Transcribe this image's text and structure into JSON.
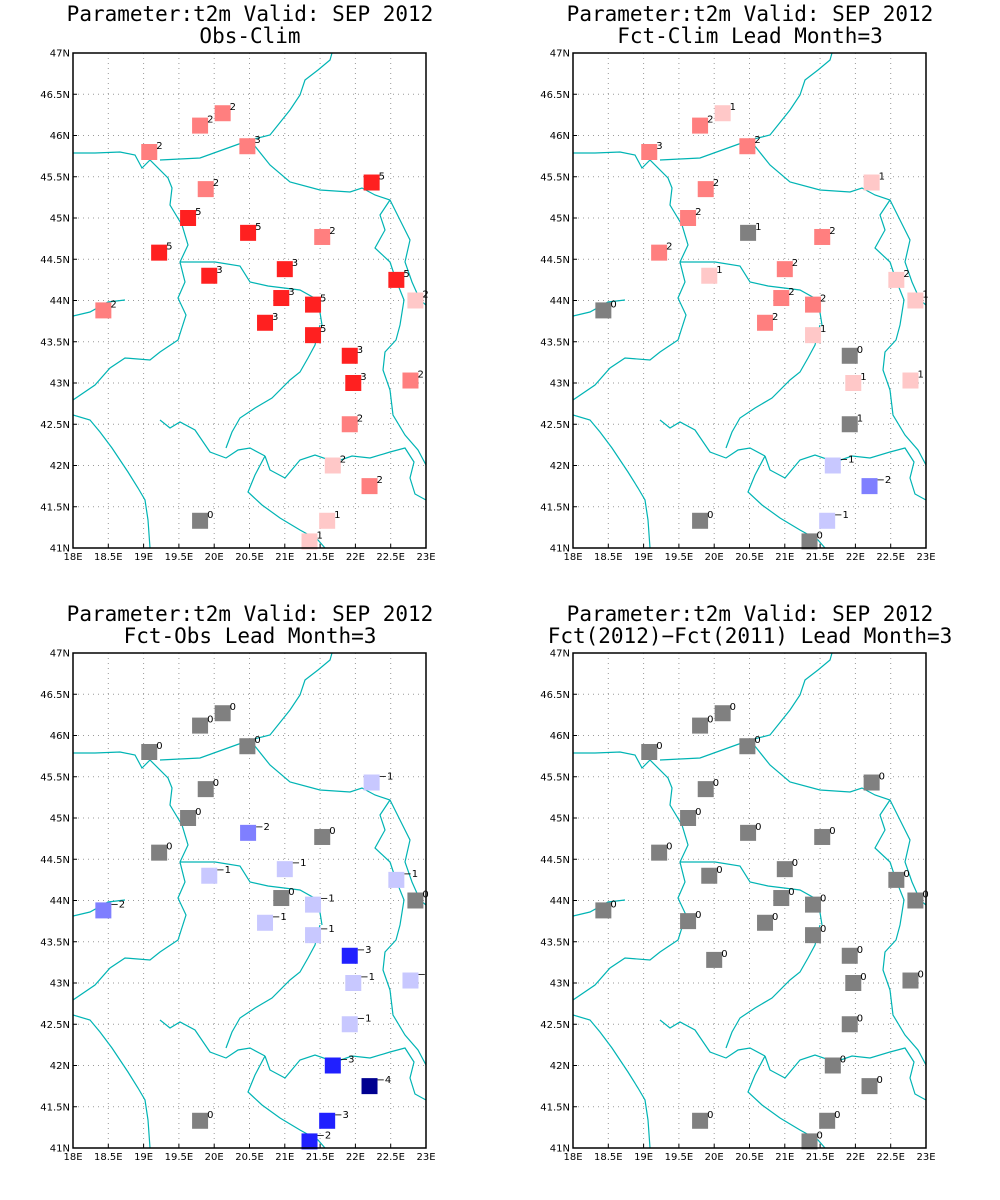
{
  "chart_data": [
    {
      "type": "scatter",
      "title": "Parameter:t2m Valid: SEP 2012",
      "subtitle": "Obs-Clim",
      "xlim": [
        18,
        23
      ],
      "ylim": [
        41,
        47
      ],
      "xticks": [
        "18E",
        "18.5E",
        "19E",
        "19.5E",
        "20E",
        "20.5E",
        "21E",
        "21.5E",
        "22E",
        "22.5E",
        "23E"
      ],
      "yticks": [
        "41N",
        "41.5N",
        "42N",
        "42.5N",
        "43N",
        "43.5N",
        "44N",
        "44.5N",
        "45N",
        "45.5N",
        "46N",
        "46.5N",
        "47N"
      ],
      "grid": true,
      "points": [
        {
          "x": 18.43,
          "y": 43.88,
          "v": "2",
          "c": "#ff7f7f"
        },
        {
          "x": 19.08,
          "y": 45.8,
          "v": "2",
          "c": "#ff7f7f"
        },
        {
          "x": 19.8,
          "y": 46.12,
          "v": "2",
          "c": "#ff7f7f"
        },
        {
          "x": 20.12,
          "y": 46.27,
          "v": "2",
          "c": "#ff7f7f"
        },
        {
          "x": 20.47,
          "y": 45.87,
          "v": "3",
          "c": "#ff7f7f"
        },
        {
          "x": 19.88,
          "y": 45.35,
          "v": "2",
          "c": "#ff7f7f"
        },
        {
          "x": 22.23,
          "y": 45.43,
          "v": "5",
          "c": "#ff2020"
        },
        {
          "x": 19.63,
          "y": 45.0,
          "v": "5",
          "c": "#ff2020"
        },
        {
          "x": 20.48,
          "y": 44.82,
          "v": "5",
          "c": "#ff2020"
        },
        {
          "x": 21.53,
          "y": 44.77,
          "v": "2",
          "c": "#ff7f7f"
        },
        {
          "x": 19.22,
          "y": 44.58,
          "v": "5",
          "c": "#ff2020"
        },
        {
          "x": 19.93,
          "y": 44.3,
          "v": "3",
          "c": "#ff2020"
        },
        {
          "x": 21.0,
          "y": 44.38,
          "v": "3",
          "c": "#ff2020"
        },
        {
          "x": 22.58,
          "y": 44.25,
          "v": "5",
          "c": "#ff2020"
        },
        {
          "x": 22.85,
          "y": 44.0,
          "v": "2",
          "c": "#ffc8c8"
        },
        {
          "x": 20.95,
          "y": 44.03,
          "v": "3",
          "c": "#ff2020"
        },
        {
          "x": 21.4,
          "y": 43.95,
          "v": "5",
          "c": "#ff2020"
        },
        {
          "x": 20.72,
          "y": 43.73,
          "v": "3",
          "c": "#ff2020"
        },
        {
          "x": 21.4,
          "y": 43.58,
          "v": "5",
          "c": "#ff2020"
        },
        {
          "x": 21.92,
          "y": 43.33,
          "v": "3",
          "c": "#ff2020"
        },
        {
          "x": 21.97,
          "y": 43.0,
          "v": "3",
          "c": "#ff2020"
        },
        {
          "x": 22.78,
          "y": 43.03,
          "v": "2",
          "c": "#ff7f7f"
        },
        {
          "x": 21.92,
          "y": 42.5,
          "v": "2",
          "c": "#ff7f7f"
        },
        {
          "x": 21.68,
          "y": 42.0,
          "v": "2",
          "c": "#ffc8c8"
        },
        {
          "x": 22.2,
          "y": 41.75,
          "v": "2",
          "c": "#ff7f7f"
        },
        {
          "x": 19.8,
          "y": 41.33,
          "v": "0",
          "c": "#808080"
        },
        {
          "x": 21.6,
          "y": 41.33,
          "v": "1",
          "c": "#ffc8c8"
        },
        {
          "x": 21.35,
          "y": 41.08,
          "v": "1",
          "c": "#ffc8c8"
        }
      ]
    },
    {
      "type": "scatter",
      "title": "Parameter:t2m Valid: SEP 2012",
      "subtitle": "Fct-Clim Lead Month=3",
      "xlim": [
        18,
        23
      ],
      "ylim": [
        41,
        47
      ],
      "xticks": [
        "18E",
        "18.5E",
        "19E",
        "19.5E",
        "20E",
        "20.5E",
        "21E",
        "21.5E",
        "22E",
        "22.5E",
        "23E"
      ],
      "yticks": [
        "41N",
        "41.5N",
        "42N",
        "42.5N",
        "43N",
        "43.5N",
        "44N",
        "44.5N",
        "45N",
        "45.5N",
        "46N",
        "46.5N",
        "47N"
      ],
      "grid": true,
      "points": [
        {
          "x": 18.43,
          "y": 43.88,
          "v": "0",
          "c": "#808080"
        },
        {
          "x": 19.08,
          "y": 45.8,
          "v": "3",
          "c": "#ff7f7f"
        },
        {
          "x": 19.8,
          "y": 46.12,
          "v": "2",
          "c": "#ff7f7f"
        },
        {
          "x": 20.12,
          "y": 46.27,
          "v": "1",
          "c": "#ffc8c8"
        },
        {
          "x": 20.47,
          "y": 45.87,
          "v": "2",
          "c": "#ff7f7f"
        },
        {
          "x": 19.88,
          "y": 45.35,
          "v": "2",
          "c": "#ff7f7f"
        },
        {
          "x": 22.23,
          "y": 45.43,
          "v": "1",
          "c": "#ffc8c8"
        },
        {
          "x": 19.63,
          "y": 45.0,
          "v": "2",
          "c": "#ff7f7f"
        },
        {
          "x": 20.48,
          "y": 44.82,
          "v": "1",
          "c": "#808080"
        },
        {
          "x": 21.53,
          "y": 44.77,
          "v": "2",
          "c": "#ff7f7f"
        },
        {
          "x": 19.22,
          "y": 44.58,
          "v": "2",
          "c": "#ff7f7f"
        },
        {
          "x": 19.93,
          "y": 44.3,
          "v": "1",
          "c": "#ffc8c8"
        },
        {
          "x": 21.0,
          "y": 44.38,
          "v": "2",
          "c": "#ff7f7f"
        },
        {
          "x": 22.58,
          "y": 44.25,
          "v": "2",
          "c": "#ffc8c8"
        },
        {
          "x": 22.85,
          "y": 44.0,
          "v": "1",
          "c": "#ffc8c8"
        },
        {
          "x": 20.95,
          "y": 44.03,
          "v": "2",
          "c": "#ff7f7f"
        },
        {
          "x": 21.4,
          "y": 43.95,
          "v": "2",
          "c": "#ff7f7f"
        },
        {
          "x": 20.72,
          "y": 43.73,
          "v": "2",
          "c": "#ff7f7f"
        },
        {
          "x": 21.4,
          "y": 43.58,
          "v": "1",
          "c": "#ffc8c8"
        },
        {
          "x": 21.92,
          "y": 43.33,
          "v": "0",
          "c": "#808080"
        },
        {
          "x": 21.97,
          "y": 43.0,
          "v": "1",
          "c": "#ffc8c8"
        },
        {
          "x": 22.78,
          "y": 43.03,
          "v": "1",
          "c": "#ffc8c8"
        },
        {
          "x": 21.92,
          "y": 42.5,
          "v": "1",
          "c": "#808080"
        },
        {
          "x": 21.68,
          "y": 42.0,
          "v": "−1",
          "c": "#c8c8ff"
        },
        {
          "x": 22.2,
          "y": 41.75,
          "v": "−2",
          "c": "#7f7fff"
        },
        {
          "x": 19.8,
          "y": 41.33,
          "v": "0",
          "c": "#808080"
        },
        {
          "x": 21.6,
          "y": 41.33,
          "v": "−1",
          "c": "#c8c8ff"
        },
        {
          "x": 21.35,
          "y": 41.08,
          "v": "0",
          "c": "#808080"
        }
      ]
    },
    {
      "type": "scatter",
      "title": "Parameter:t2m Valid: SEP 2012",
      "subtitle": "Fct-Obs Lead Month=3",
      "xlim": [
        18,
        23
      ],
      "ylim": [
        41,
        47
      ],
      "xticks": [
        "18E",
        "18.5E",
        "19E",
        "19.5E",
        "20E",
        "20.5E",
        "21E",
        "21.5E",
        "22E",
        "22.5E",
        "23E"
      ],
      "yticks": [
        "41N",
        "41.5N",
        "42N",
        "42.5N",
        "43N",
        "43.5N",
        "44N",
        "44.5N",
        "45N",
        "45.5N",
        "46N",
        "46.5N",
        "47N"
      ],
      "grid": true,
      "points": [
        {
          "x": 18.43,
          "y": 43.88,
          "v": "−2",
          "c": "#7f7fff"
        },
        {
          "x": 19.08,
          "y": 45.8,
          "v": "0",
          "c": "#808080"
        },
        {
          "x": 19.8,
          "y": 46.12,
          "v": "0",
          "c": "#808080"
        },
        {
          "x": 20.12,
          "y": 46.27,
          "v": "0",
          "c": "#808080"
        },
        {
          "x": 20.47,
          "y": 45.87,
          "v": "0",
          "c": "#808080"
        },
        {
          "x": 19.88,
          "y": 45.35,
          "v": "0",
          "c": "#808080"
        },
        {
          "x": 22.23,
          "y": 45.43,
          "v": "−1",
          "c": "#c8c8ff"
        },
        {
          "x": 19.63,
          "y": 45.0,
          "v": "0",
          "c": "#808080"
        },
        {
          "x": 20.48,
          "y": 44.82,
          "v": "−2",
          "c": "#7f7fff"
        },
        {
          "x": 21.53,
          "y": 44.77,
          "v": "0",
          "c": "#808080"
        },
        {
          "x": 19.22,
          "y": 44.58,
          "v": "0",
          "c": "#808080"
        },
        {
          "x": 19.93,
          "y": 44.3,
          "v": "−1",
          "c": "#c8c8ff"
        },
        {
          "x": 21.0,
          "y": 44.38,
          "v": "−1",
          "c": "#c8c8ff"
        },
        {
          "x": 22.58,
          "y": 44.25,
          "v": "−1",
          "c": "#c8c8ff"
        },
        {
          "x": 22.85,
          "y": 44.0,
          "v": "0",
          "c": "#808080"
        },
        {
          "x": 20.95,
          "y": 44.03,
          "v": "0",
          "c": "#808080"
        },
        {
          "x": 21.4,
          "y": 43.95,
          "v": "−1",
          "c": "#c8c8ff"
        },
        {
          "x": 20.72,
          "y": 43.73,
          "v": "−1",
          "c": "#c8c8ff"
        },
        {
          "x": 21.4,
          "y": 43.58,
          "v": "−1",
          "c": "#c8c8ff"
        },
        {
          "x": 21.92,
          "y": 43.33,
          "v": "−3",
          "c": "#2020ff"
        },
        {
          "x": 21.97,
          "y": 43.0,
          "v": "−1",
          "c": "#c8c8ff"
        },
        {
          "x": 22.78,
          "y": 43.03,
          "v": "−",
          "c": "#c8c8ff"
        },
        {
          "x": 21.92,
          "y": 42.5,
          "v": "−1",
          "c": "#c8c8ff"
        },
        {
          "x": 21.68,
          "y": 42.0,
          "v": "−3",
          "c": "#2020ff"
        },
        {
          "x": 22.2,
          "y": 41.75,
          "v": "−4",
          "c": "#000090"
        },
        {
          "x": 19.8,
          "y": 41.33,
          "v": "0",
          "c": "#808080"
        },
        {
          "x": 21.6,
          "y": 41.33,
          "v": "−3",
          "c": "#2020ff"
        },
        {
          "x": 21.35,
          "y": 41.08,
          "v": "−2",
          "c": "#2020ff"
        }
      ]
    },
    {
      "type": "scatter",
      "title": "Parameter:t2m Valid: SEP 2012",
      "subtitle": "Fct(2012)−Fct(2011) Lead Month=3",
      "xlim": [
        18,
        23
      ],
      "ylim": [
        41,
        47
      ],
      "xticks": [
        "18E",
        "18.5E",
        "19E",
        "19.5E",
        "20E",
        "20.5E",
        "21E",
        "21.5E",
        "22E",
        "22.5E",
        "23E"
      ],
      "yticks": [
        "41N",
        "41.5N",
        "42N",
        "42.5N",
        "43N",
        "43.5N",
        "44N",
        "44.5N",
        "45N",
        "45.5N",
        "46N",
        "46.5N",
        "47N"
      ],
      "grid": true,
      "points": [
        {
          "x": 18.43,
          "y": 43.88,
          "v": "0",
          "c": "#808080"
        },
        {
          "x": 19.08,
          "y": 45.8,
          "v": "0",
          "c": "#808080"
        },
        {
          "x": 19.8,
          "y": 46.12,
          "v": "0",
          "c": "#808080"
        },
        {
          "x": 20.12,
          "y": 46.27,
          "v": "0",
          "c": "#808080"
        },
        {
          "x": 20.47,
          "y": 45.87,
          "v": "0",
          "c": "#808080"
        },
        {
          "x": 19.88,
          "y": 45.35,
          "v": "0",
          "c": "#808080"
        },
        {
          "x": 22.23,
          "y": 45.43,
          "v": "0",
          "c": "#808080"
        },
        {
          "x": 19.63,
          "y": 45.0,
          "v": "0",
          "c": "#808080"
        },
        {
          "x": 20.48,
          "y": 44.82,
          "v": "0",
          "c": "#808080"
        },
        {
          "x": 21.53,
          "y": 44.77,
          "v": "0",
          "c": "#808080"
        },
        {
          "x": 19.22,
          "y": 44.58,
          "v": "0",
          "c": "#808080"
        },
        {
          "x": 19.93,
          "y": 44.3,
          "v": "0",
          "c": "#808080"
        },
        {
          "x": 21.0,
          "y": 44.38,
          "v": "0",
          "c": "#808080"
        },
        {
          "x": 22.58,
          "y": 44.25,
          "v": "0",
          "c": "#808080"
        },
        {
          "x": 22.85,
          "y": 44.0,
          "v": "0",
          "c": "#808080"
        },
        {
          "x": 20.95,
          "y": 44.03,
          "v": "0",
          "c": "#808080"
        },
        {
          "x": 21.4,
          "y": 43.95,
          "v": "0",
          "c": "#808080"
        },
        {
          "x": 19.63,
          "y": 43.75,
          "v": "0",
          "c": "#808080"
        },
        {
          "x": 20.72,
          "y": 43.73,
          "v": "0",
          "c": "#808080"
        },
        {
          "x": 21.4,
          "y": 43.58,
          "v": "0",
          "c": "#808080"
        },
        {
          "x": 21.92,
          "y": 43.33,
          "v": "0",
          "c": "#808080"
        },
        {
          "x": 20.0,
          "y": 43.28,
          "v": "0",
          "c": "#808080"
        },
        {
          "x": 21.97,
          "y": 43.0,
          "v": "0",
          "c": "#808080"
        },
        {
          "x": 22.78,
          "y": 43.03,
          "v": "0",
          "c": "#808080"
        },
        {
          "x": 21.92,
          "y": 42.5,
          "v": "0",
          "c": "#808080"
        },
        {
          "x": 21.68,
          "y": 42.0,
          "v": "0",
          "c": "#808080"
        },
        {
          "x": 22.2,
          "y": 41.75,
          "v": "0",
          "c": "#808080"
        },
        {
          "x": 19.8,
          "y": 41.33,
          "v": "0",
          "c": "#808080"
        },
        {
          "x": 21.6,
          "y": 41.33,
          "v": "0",
          "c": "#808080"
        },
        {
          "x": 21.35,
          "y": 41.08,
          "v": "0",
          "c": "#808080"
        }
      ]
    }
  ],
  "colors": {
    "border_lines": "#00b4b4",
    "grid": "#9a9a9a",
    "frame": "#000000"
  }
}
